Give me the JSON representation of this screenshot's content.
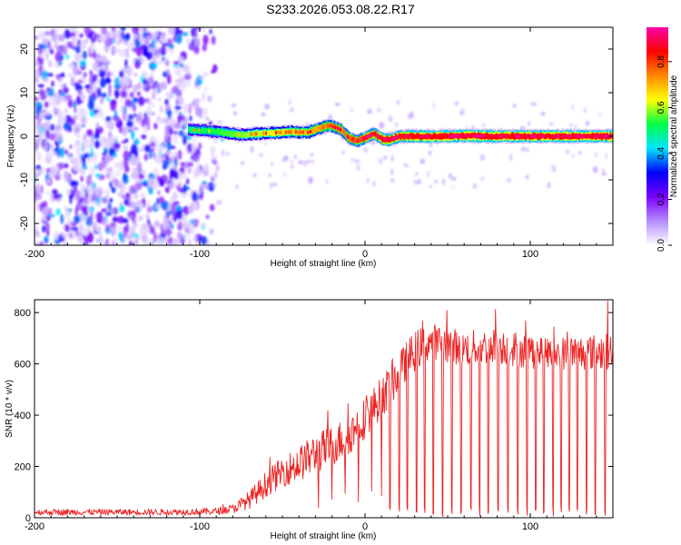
{
  "title": "S233.2026.053.08.22.R17",
  "chart_data": [
    {
      "type": "heatmap",
      "xlabel": "Height of straight line (km)",
      "ylabel": "Frequency (Hz)",
      "xlim": [
        -200,
        150
      ],
      "ylim": [
        -25,
        25
      ],
      "xticks": [
        -200,
        -100,
        0,
        100
      ],
      "xtick_labels": [
        "-200",
        "-100",
        "0",
        "100"
      ],
      "yticks": [
        -20,
        -10,
        0,
        10,
        20
      ],
      "ytick_labels": [
        "-20",
        "-10",
        "0",
        "10",
        "20"
      ],
      "colorbar": {
        "label": "Normalized spectral amplitude",
        "range": [
          0,
          0.95
        ],
        "ticks": [
          0,
          0.2,
          0.4,
          0.6,
          0.8
        ],
        "tick_labels": [
          "0.0",
          "0.2",
          "0.4",
          "0.6",
          "0.8"
        ],
        "stops": [
          "#ffffff",
          "#b58cff",
          "#7a00ff",
          "#0000ff",
          "#00e5ff",
          "#00ff44",
          "#ffff00",
          "#ff8800",
          "#ff0000",
          "#ff00aa"
        ]
      },
      "noise_region": {
        "x_range": [
          -200,
          -90
        ],
        "y_range": [
          -25,
          25
        ],
        "level": 0.15
      },
      "signal_track": {
        "x": [
          -107,
          -95,
          -85,
          -75,
          -65,
          -55,
          -45,
          -35,
          -28,
          -22,
          -15,
          -10,
          -5,
          0,
          5,
          10,
          15,
          20,
          30,
          40,
          60,
          80,
          100,
          120,
          140,
          150
        ],
        "y": [
          1.5,
          1.2,
          0.8,
          0.3,
          0.6,
          0.8,
          1.0,
          0.9,
          1.8,
          2.5,
          1.5,
          -0.5,
          -1.0,
          -0.3,
          0.6,
          -0.6,
          -0.8,
          0.0,
          0.0,
          -0.1,
          0.1,
          0.0,
          0.0,
          0.0,
          0.0,
          0.0
        ],
        "amplitude": [
          0.3,
          0.35,
          0.4,
          0.45,
          0.5,
          0.55,
          0.6,
          0.65,
          0.7,
          0.75,
          0.75,
          0.8,
          0.8,
          0.85,
          0.85,
          0.9,
          0.9,
          0.9,
          0.92,
          0.95,
          0.95,
          0.95,
          0.95,
          0.95,
          0.95,
          0.95
        ]
      }
    },
    {
      "type": "line",
      "xlabel": "Height of straight line (km)",
      "ylabel": "SNR (10 * v/v)",
      "xlim": [
        -200,
        150
      ],
      "ylim": [
        0,
        850
      ],
      "xticks": [
        -200,
        -100,
        0,
        100
      ],
      "xtick_labels": [
        "-200",
        "-100",
        "0",
        "100"
      ],
      "yticks": [
        0,
        200,
        400,
        600,
        800
      ],
      "ytick_labels": [
        "0",
        "200",
        "400",
        "600",
        "800"
      ],
      "line_color": "#ee2222",
      "envelope": {
        "x": [
          -200,
          -120,
          -90,
          -80,
          -70,
          -60,
          -50,
          -40,
          -30,
          -20,
          -10,
          0,
          10,
          20,
          30,
          40,
          60,
          80,
          100,
          120,
          150
        ],
        "y": [
          22,
          22,
          25,
          35,
          70,
          130,
          180,
          210,
          250,
          280,
          320,
          390,
          470,
          560,
          650,
          690,
          660,
          670,
          650,
          640,
          650
        ],
        "spread": [
          12,
          12,
          14,
          18,
          35,
          50,
          60,
          70,
          80,
          80,
          80,
          80,
          80,
          80,
          80,
          70,
          70,
          70,
          70,
          70,
          70
        ]
      },
      "dropouts_start": 15,
      "peaks": [
        {
          "x": 147,
          "y": 845
        },
        {
          "x": 79,
          "y": 812
        },
        {
          "x": 35,
          "y": 768
        }
      ]
    }
  ]
}
